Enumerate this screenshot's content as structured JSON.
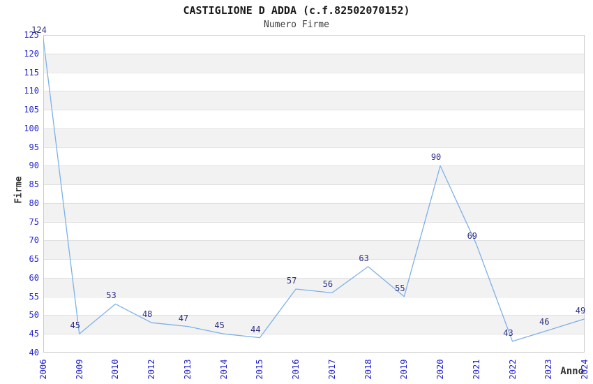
{
  "chart_data": {
    "type": "line",
    "title": "CASTIGLIONE D ADDA (c.f.82502070152)",
    "subtitle": "Numero Firme",
    "xlabel": "Anno",
    "ylabel": "Firme",
    "categories": [
      "2006",
      "2009",
      "2010",
      "2012",
      "2013",
      "2014",
      "2015",
      "2016",
      "2017",
      "2018",
      "2019",
      "2020",
      "2021",
      "2022",
      "2023",
      "2024"
    ],
    "values": [
      124,
      45,
      53,
      48,
      47,
      45,
      44,
      57,
      56,
      63,
      55,
      90,
      69,
      43,
      46,
      49
    ],
    "point_labels": [
      "124",
      "45",
      "53",
      "48",
      "47",
      "45",
      "44",
      "57",
      "56",
      "63",
      "55",
      "90",
      "69",
      "43",
      "46",
      "49"
    ],
    "ylim": [
      40,
      125
    ],
    "ytick_step": 5,
    "grid": "horizontal",
    "bands": "alternating-gray",
    "legend_position": "none",
    "colors": {
      "line": "#7db1e8",
      "point_label": "#2e2e80",
      "tick_label": "#2121cc",
      "axis_title": "#333333",
      "title": "#1a1a1a",
      "subtitle": "#3d3d3d",
      "band": "#f2f2f2",
      "gridline": "#e0e0e0",
      "border": "#cccccc",
      "background": "#ffffff"
    }
  }
}
